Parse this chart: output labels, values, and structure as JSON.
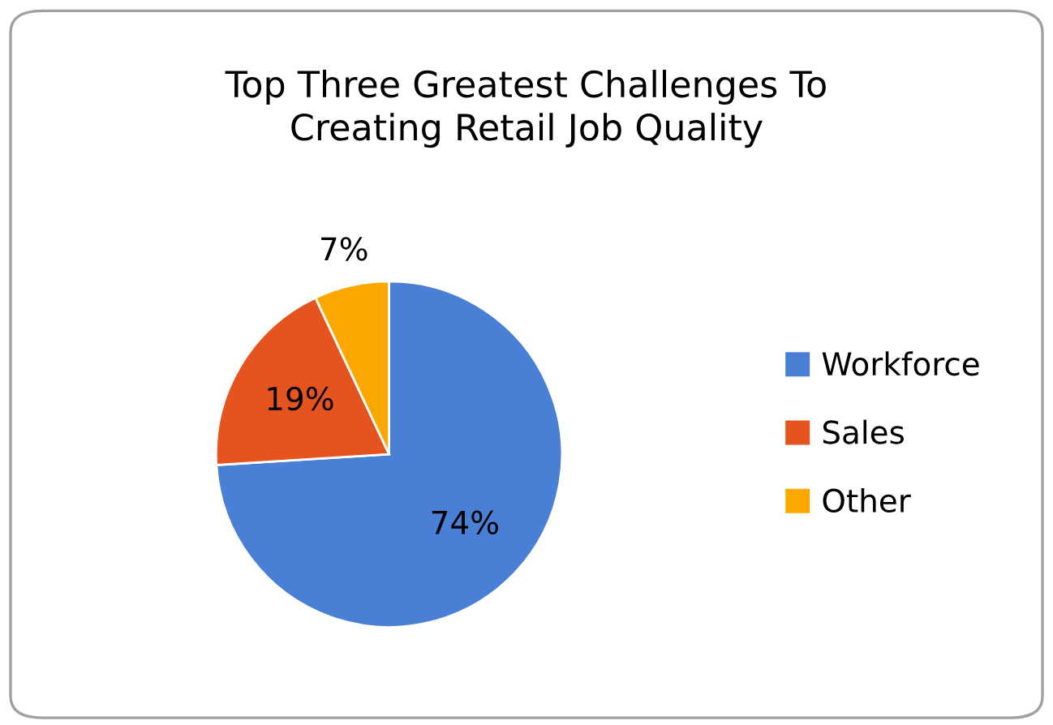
{
  "chart_data": {
    "type": "pie",
    "title": "Top Three Greatest Challenges To\nCreating Retail Job Quality",
    "categories": [
      "Workforce",
      "Sales",
      "Other"
    ],
    "values": [
      74,
      19,
      7
    ],
    "value_labels": [
      "74%",
      "19%",
      "7%"
    ],
    "colors": [
      "#4a7fd6",
      "#e5531f",
      "#fda800"
    ],
    "legend": "right"
  }
}
